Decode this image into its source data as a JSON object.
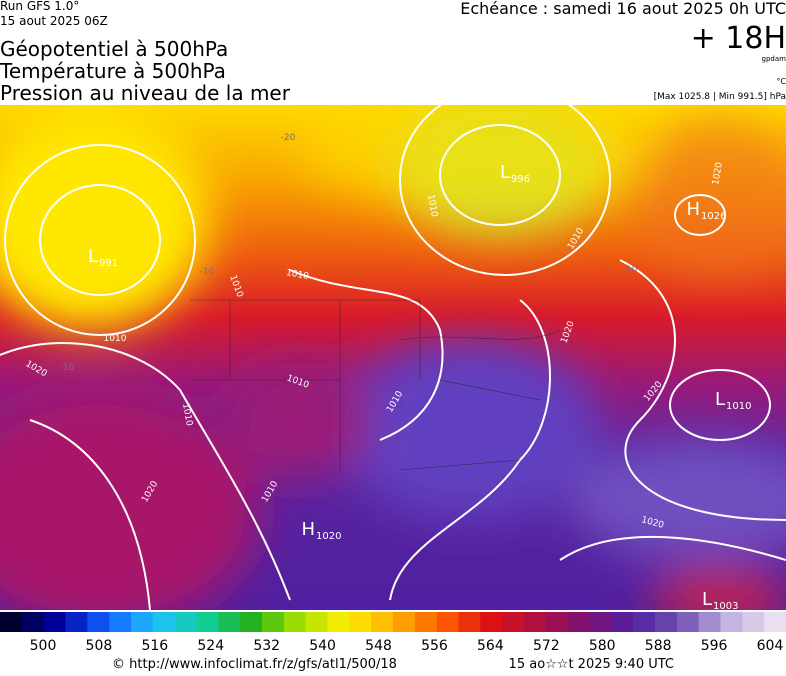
{
  "header": {
    "run": "Run GFS 1.0°",
    "run_date": "15 aout 2025 06Z",
    "title_lines": [
      "Géopotentiel à 500hPa",
      "Température à 500hPa",
      "Pression au niveau de la mer"
    ],
    "valid": "Echéance : samedi 16 aout 2025 0h UTC",
    "lead": "+ 18H",
    "unit_geo": "gpdam",
    "unit_temp": "°C",
    "extremes": "[Max 1025.8 | Min 991.5] hPa"
  },
  "map": {
    "centers": [
      {
        "symbol": "L",
        "value": "996"
      },
      {
        "symbol": "L",
        "value": "991"
      },
      {
        "symbol": "H",
        "value": "1026"
      },
      {
        "symbol": "L",
        "value": "1010"
      },
      {
        "symbol": "H",
        "value": "1020"
      },
      {
        "symbol": "L",
        "value": "1003"
      }
    ],
    "isobar_labels": [
      "1010",
      "1010",
      "1020",
      "1010",
      "1010",
      "1010",
      "1010",
      "1020",
      "1010",
      "1020",
      "1020",
      "1010",
      "1010",
      "1020",
      "1020"
    ],
    "temperature_labels": [
      "-20",
      "-10",
      "-10",
      "-10"
    ]
  },
  "colorbar": {
    "ticks": [
      500,
      508,
      516,
      524,
      532,
      540,
      548,
      556,
      564,
      572,
      580,
      588,
      596,
      604
    ]
  },
  "footer": {
    "source": "© http://www.infoclimat.fr/z/gfs/atl1/500/18",
    "generated": "15 ao☆☆t 2025  9:40 UTC"
  }
}
